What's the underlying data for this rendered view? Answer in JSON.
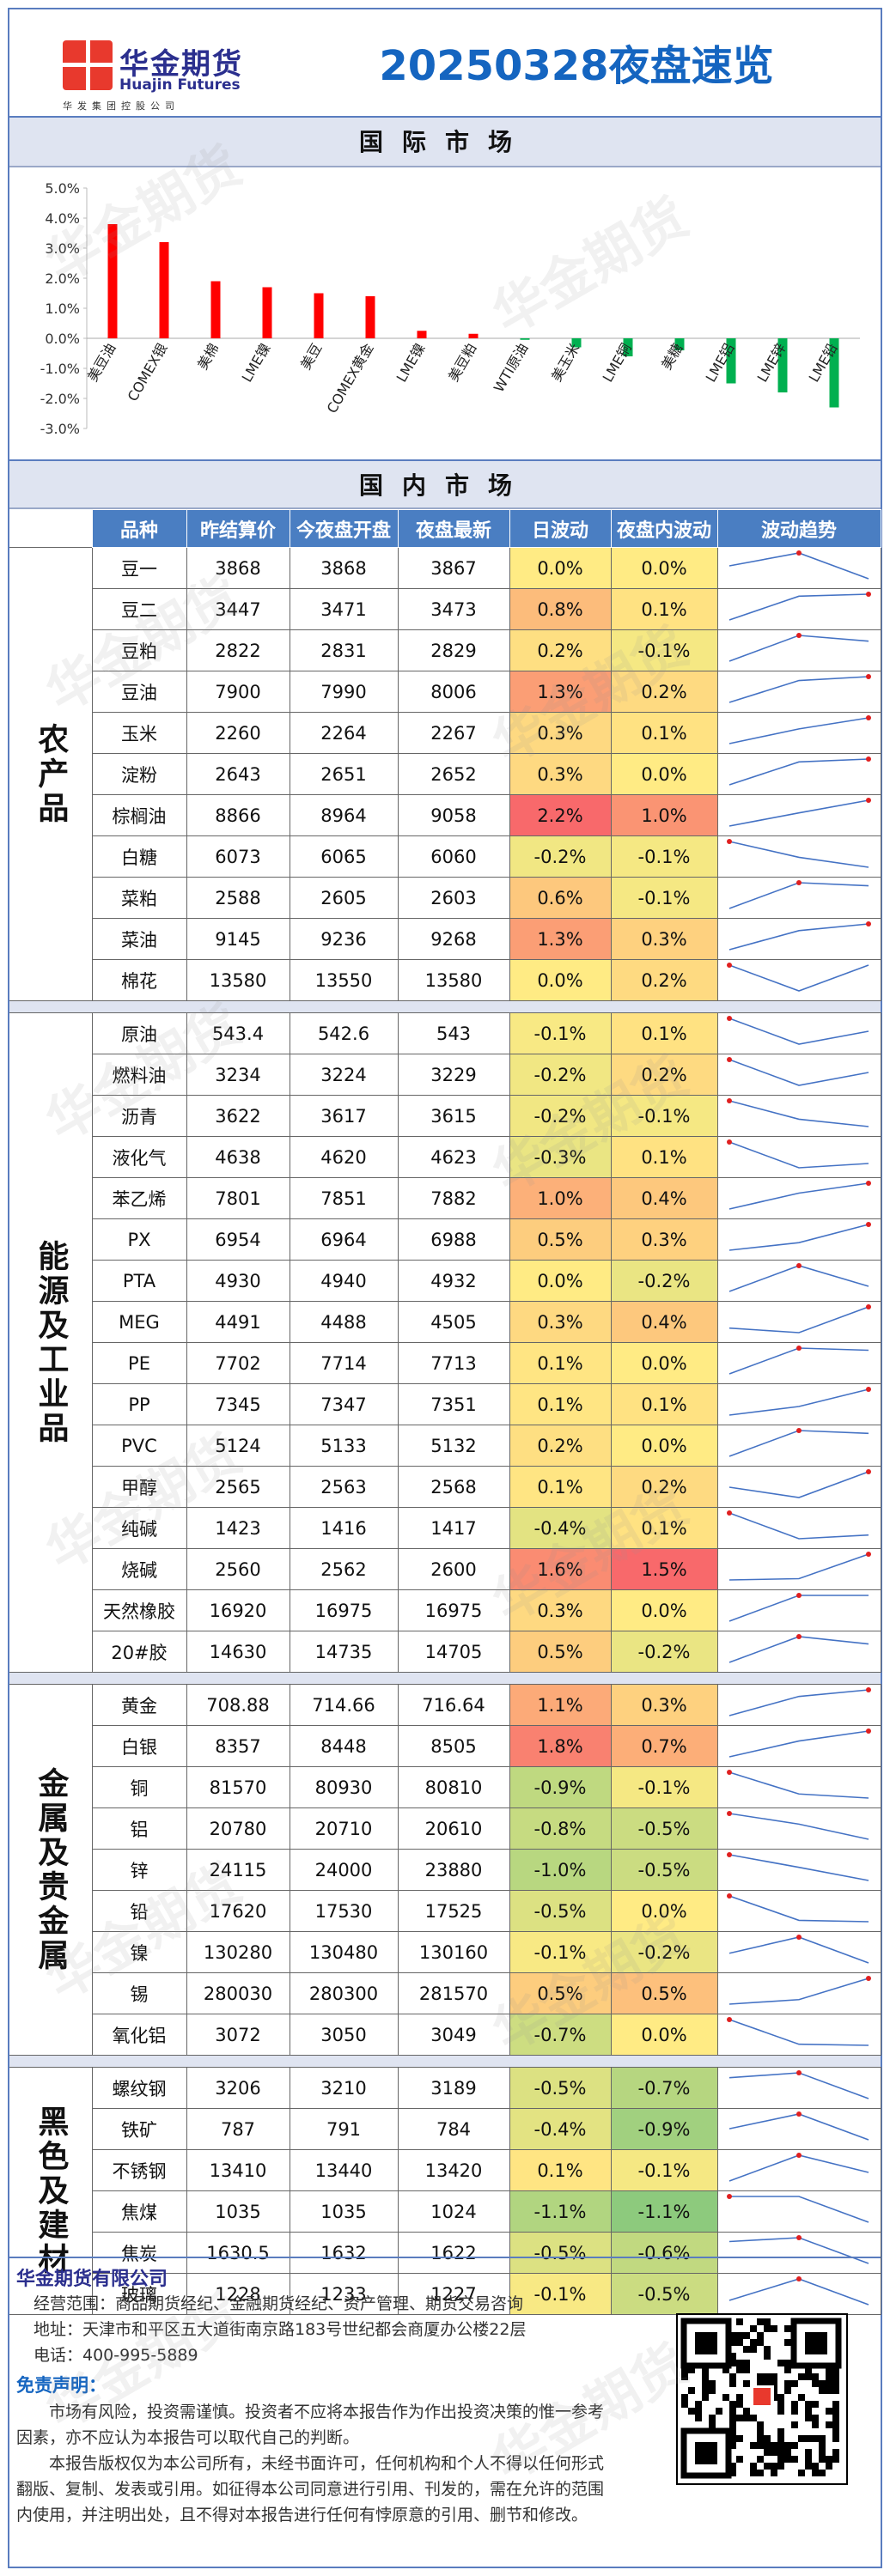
{
  "header": {
    "logo_cn": "华金期货",
    "logo_en": "Huajin Futures",
    "logo_sub": "华发集团控股公司",
    "title": "20250328夜盘速览"
  },
  "intl": {
    "section_title": "国际市场"
  },
  "chart_data": {
    "type": "bar",
    "categories": [
      "美豆油",
      "COMEX银",
      "美棉",
      "LME镍",
      "美豆",
      "COMEX黄金",
      "LME镍",
      "美豆粕",
      "WTI原油",
      "美玉米",
      "LME铜",
      "美糖",
      "LME铝",
      "LME锌",
      "LME铅"
    ],
    "values": [
      3.8,
      3.2,
      1.9,
      1.7,
      1.5,
      1.4,
      0.25,
      0.15,
      -0.05,
      -0.3,
      -0.6,
      -0.4,
      -1.5,
      -1.8,
      -2.3
    ],
    "ylim": [
      -3.0,
      5.0
    ],
    "yticks": [
      "5.0%",
      "4.0%",
      "3.0%",
      "2.0%",
      "1.0%",
      "0.0%",
      "-1.0%",
      "-2.0%",
      "-3.0%"
    ],
    "colors": {
      "positive": "#ff0000",
      "negative": "#00b050"
    }
  },
  "domestic": {
    "section_title": "国内市场",
    "headers": [
      "品种",
      "昨结算价",
      "今夜盘开盘",
      "夜盘最新",
      "日波动",
      "夜盘内波动",
      "波动趋势"
    ],
    "groups": [
      {
        "name": "农产品",
        "rows": [
          {
            "name": "豆一",
            "prev": "3868",
            "open": "3868",
            "last": "3867",
            "day": "0.0%",
            "night": "0.0%",
            "dv": 0.0,
            "nv": 0.0,
            "trend": [
              3868,
              3869,
              3867
            ]
          },
          {
            "name": "豆二",
            "prev": "3447",
            "open": "3471",
            "last": "3473",
            "day": "0.8%",
            "night": "0.1%",
            "dv": 0.8,
            "nv": 0.1,
            "trend": [
              3447,
              3471,
              3473
            ]
          },
          {
            "name": "豆粕",
            "prev": "2822",
            "open": "2831",
            "last": "2829",
            "day": "0.2%",
            "night": "-0.1%",
            "dv": 0.2,
            "nv": -0.1,
            "trend": [
              2822,
              2831,
              2829
            ]
          },
          {
            "name": "豆油",
            "prev": "7900",
            "open": "7990",
            "last": "8006",
            "day": "1.3%",
            "night": "0.2%",
            "dv": 1.3,
            "nv": 0.2,
            "trend": [
              7900,
              7990,
              8006
            ]
          },
          {
            "name": "玉米",
            "prev": "2260",
            "open": "2264",
            "last": "2267",
            "day": "0.3%",
            "night": "0.1%",
            "dv": 0.3,
            "nv": 0.1,
            "trend": [
              2260,
              2264,
              2267
            ]
          },
          {
            "name": "淀粉",
            "prev": "2643",
            "open": "2651",
            "last": "2652",
            "day": "0.3%",
            "night": "0.0%",
            "dv": 0.3,
            "nv": 0.0,
            "trend": [
              2643,
              2651,
              2652
            ]
          },
          {
            "name": "棕榈油",
            "prev": "8866",
            "open": "8964",
            "last": "9058",
            "day": "2.2%",
            "night": "1.0%",
            "dv": 2.2,
            "nv": 1.0,
            "trend": [
              8866,
              8964,
              9058
            ]
          },
          {
            "name": "白糖",
            "prev": "6073",
            "open": "6065",
            "last": "6060",
            "day": "-0.2%",
            "night": "-0.1%",
            "dv": -0.2,
            "nv": -0.1,
            "trend": [
              6073,
              6065,
              6060
            ]
          },
          {
            "name": "菜粕",
            "prev": "2588",
            "open": "2605",
            "last": "2603",
            "day": "0.6%",
            "night": "-0.1%",
            "dv": 0.6,
            "nv": -0.1,
            "trend": [
              2588,
              2605,
              2603
            ]
          },
          {
            "name": "菜油",
            "prev": "9145",
            "open": "9236",
            "last": "9268",
            "day": "1.3%",
            "night": "0.3%",
            "dv": 1.3,
            "nv": 0.3,
            "trend": [
              9145,
              9236,
              9268
            ]
          },
          {
            "name": "棉花",
            "prev": "13580",
            "open": "13550",
            "last": "13580",
            "day": "0.0%",
            "night": "0.2%",
            "dv": 0.0,
            "nv": 0.2,
            "trend": [
              13580,
              13550,
              13580
            ]
          }
        ]
      },
      {
        "name": "能源及工业品",
        "rows": [
          {
            "name": "原油",
            "prev": "543.4",
            "open": "542.6",
            "last": "543",
            "day": "-0.1%",
            "night": "0.1%",
            "dv": -0.1,
            "nv": 0.1,
            "trend": [
              543.4,
              542.6,
              543
            ]
          },
          {
            "name": "燃料油",
            "prev": "3234",
            "open": "3224",
            "last": "3229",
            "day": "-0.2%",
            "night": "0.2%",
            "dv": -0.2,
            "nv": 0.2,
            "trend": [
              3234,
              3224,
              3229
            ]
          },
          {
            "name": "沥青",
            "prev": "3622",
            "open": "3617",
            "last": "3615",
            "day": "-0.2%",
            "night": "-0.1%",
            "dv": -0.2,
            "nv": -0.1,
            "trend": [
              3622,
              3617,
              3615
            ]
          },
          {
            "name": "液化气",
            "prev": "4638",
            "open": "4620",
            "last": "4623",
            "day": "-0.3%",
            "night": "0.1%",
            "dv": -0.3,
            "nv": 0.1,
            "trend": [
              4638,
              4620,
              4623
            ]
          },
          {
            "name": "苯乙烯",
            "prev": "7801",
            "open": "7851",
            "last": "7882",
            "day": "1.0%",
            "night": "0.4%",
            "dv": 1.0,
            "nv": 0.4,
            "trend": [
              7801,
              7851,
              7882
            ]
          },
          {
            "name": "PX",
            "prev": "6954",
            "open": "6964",
            "last": "6988",
            "day": "0.5%",
            "night": "0.3%",
            "dv": 0.5,
            "nv": 0.3,
            "trend": [
              6954,
              6964,
              6988
            ]
          },
          {
            "name": "PTA",
            "prev": "4930",
            "open": "4940",
            "last": "4932",
            "day": "0.0%",
            "night": "-0.2%",
            "dv": 0.0,
            "nv": -0.2,
            "trend": [
              4930,
              4940,
              4932
            ]
          },
          {
            "name": "MEG",
            "prev": "4491",
            "open": "4488",
            "last": "4505",
            "day": "0.3%",
            "night": "0.4%",
            "dv": 0.3,
            "nv": 0.4,
            "trend": [
              4491,
              4488,
              4505
            ]
          },
          {
            "name": "PE",
            "prev": "7702",
            "open": "7714",
            "last": "7713",
            "day": "0.1%",
            "night": "0.0%",
            "dv": 0.1,
            "nv": 0.0,
            "trend": [
              7702,
              7714,
              7713
            ]
          },
          {
            "name": "PP",
            "prev": "7345",
            "open": "7347",
            "last": "7351",
            "day": "0.1%",
            "night": "0.1%",
            "dv": 0.1,
            "nv": 0.1,
            "trend": [
              7345,
              7347,
              7351
            ]
          },
          {
            "name": "PVC",
            "prev": "5124",
            "open": "5133",
            "last": "5132",
            "day": "0.2%",
            "night": "0.0%",
            "dv": 0.2,
            "nv": 0.0,
            "trend": [
              5124,
              5133,
              5132
            ]
          },
          {
            "name": "甲醇",
            "prev": "2565",
            "open": "2563",
            "last": "2568",
            "day": "0.1%",
            "night": "0.2%",
            "dv": 0.1,
            "nv": 0.2,
            "trend": [
              2565,
              2563,
              2568
            ]
          },
          {
            "name": "纯碱",
            "prev": "1423",
            "open": "1416",
            "last": "1417",
            "day": "-0.4%",
            "night": "0.1%",
            "dv": -0.4,
            "nv": 0.1,
            "trend": [
              1423,
              1416,
              1417
            ]
          },
          {
            "name": "烧碱",
            "prev": "2560",
            "open": "2562",
            "last": "2600",
            "day": "1.6%",
            "night": "1.5%",
            "dv": 1.6,
            "nv": 1.5,
            "trend": [
              2560,
              2562,
              2600
            ]
          },
          {
            "name": "天然橡胶",
            "prev": "16920",
            "open": "16975",
            "last": "16975",
            "day": "0.3%",
            "night": "0.0%",
            "dv": 0.3,
            "nv": 0.0,
            "trend": [
              16920,
              16975,
              16975
            ]
          },
          {
            "name": "20#胶",
            "prev": "14630",
            "open": "14735",
            "last": "14705",
            "day": "0.5%",
            "night": "-0.2%",
            "dv": 0.5,
            "nv": -0.2,
            "trend": [
              14630,
              14735,
              14705
            ]
          }
        ]
      },
      {
        "name": "金属及贵金属",
        "rows": [
          {
            "name": "黄金",
            "prev": "708.88",
            "open": "714.66",
            "last": "716.64",
            "day": "1.1%",
            "night": "0.3%",
            "dv": 1.1,
            "nv": 0.3,
            "trend": [
              708.88,
              714.66,
              716.64
            ]
          },
          {
            "name": "白银",
            "prev": "8357",
            "open": "8448",
            "last": "8505",
            "day": "1.8%",
            "night": "0.7%",
            "dv": 1.8,
            "nv": 0.7,
            "trend": [
              8357,
              8448,
              8505
            ]
          },
          {
            "name": "铜",
            "prev": "81570",
            "open": "80930",
            "last": "80810",
            "day": "-0.9%",
            "night": "-0.1%",
            "dv": -0.9,
            "nv": -0.1,
            "trend": [
              81570,
              80930,
              80810
            ]
          },
          {
            "name": "铝",
            "prev": "20780",
            "open": "20710",
            "last": "20610",
            "day": "-0.8%",
            "night": "-0.5%",
            "dv": -0.8,
            "nv": -0.5,
            "trend": [
              20780,
              20710,
              20610
            ]
          },
          {
            "name": "锌",
            "prev": "24115",
            "open": "24000",
            "last": "23880",
            "day": "-1.0%",
            "night": "-0.5%",
            "dv": -1.0,
            "nv": -0.5,
            "trend": [
              24115,
              24000,
              23880
            ]
          },
          {
            "name": "铅",
            "prev": "17620",
            "open": "17530",
            "last": "17525",
            "day": "-0.5%",
            "night": "0.0%",
            "dv": -0.5,
            "nv": 0.0,
            "trend": [
              17620,
              17530,
              17525
            ]
          },
          {
            "name": "镍",
            "prev": "130280",
            "open": "130480",
            "last": "130160",
            "day": "-0.1%",
            "night": "-0.2%",
            "dv": -0.1,
            "nv": -0.2,
            "trend": [
              130280,
              130480,
              130160
            ]
          },
          {
            "name": "锡",
            "prev": "280030",
            "open": "280300",
            "last": "281570",
            "day": "0.5%",
            "night": "0.5%",
            "dv": 0.5,
            "nv": 0.5,
            "trend": [
              280030,
              280300,
              281570
            ]
          },
          {
            "name": "氧化铝",
            "prev": "3072",
            "open": "3050",
            "last": "3049",
            "day": "-0.7%",
            "night": "0.0%",
            "dv": -0.7,
            "nv": 0.0,
            "trend": [
              3072,
              3050,
              3049
            ]
          }
        ]
      },
      {
        "name": "黑色及建材",
        "rows": [
          {
            "name": "螺纹钢",
            "prev": "3206",
            "open": "3210",
            "last": "3189",
            "day": "-0.5%",
            "night": "-0.7%",
            "dv": -0.5,
            "nv": -0.7,
            "trend": [
              3206,
              3210,
              3189
            ]
          },
          {
            "name": "铁矿",
            "prev": "787",
            "open": "791",
            "last": "784",
            "day": "-0.4%",
            "night": "-0.9%",
            "dv": -0.4,
            "nv": -0.9,
            "trend": [
              787,
              791,
              784
            ]
          },
          {
            "name": "不锈钢",
            "prev": "13410",
            "open": "13440",
            "last": "13420",
            "day": "0.1%",
            "night": "-0.1%",
            "dv": 0.1,
            "nv": -0.1,
            "trend": [
              13410,
              13440,
              13420
            ]
          },
          {
            "name": "焦煤",
            "prev": "1035",
            "open": "1035",
            "last": "1024",
            "day": "-1.1%",
            "night": "-1.1%",
            "dv": -1.1,
            "nv": -1.1,
            "trend": [
              1035,
              1035,
              1024
            ]
          },
          {
            "name": "焦炭",
            "prev": "1630.5",
            "open": "1632",
            "last": "1622",
            "day": "-0.5%",
            "night": "-0.6%",
            "dv": -0.5,
            "nv": -0.6,
            "trend": [
              1630.5,
              1632,
              1622
            ]
          },
          {
            "name": "玻璃",
            "prev": "1228",
            "open": "1233",
            "last": "1227",
            "day": "-0.1%",
            "night": "-0.5%",
            "dv": -0.1,
            "nv": -0.5,
            "trend": [
              1228,
              1233,
              1227
            ]
          }
        ]
      }
    ]
  },
  "footer": {
    "company": "华金期货有限公司",
    "scope": "经营范围：商品期货经纪、金融期货经纪、资产管理、期货交易咨询",
    "address": "地址：天津市和平区五大道街南京路183号世纪都会商厦办公楼22层",
    "phone": "电话：400-995-5889",
    "disclaimer_title": "免责声明：",
    "disclaimer_1": "市场有风险，投资需谨慎。投资者不应将本报告作为作出投资决策的惟一参考因素，亦不应认为本报告可以取代自己的判断。",
    "disclaimer_2": "本报告版权仅为本公司所有，未经书面许可，任何机构和个人不得以任何形式翻版、复制、发表或引用。如征得本公司同意进行引用、刊发的，需在允许的范围内使用，并注明出处，且不得对本报告进行任何有悖原意的引用、删节和修改。",
    "watermark": "华金期货"
  }
}
